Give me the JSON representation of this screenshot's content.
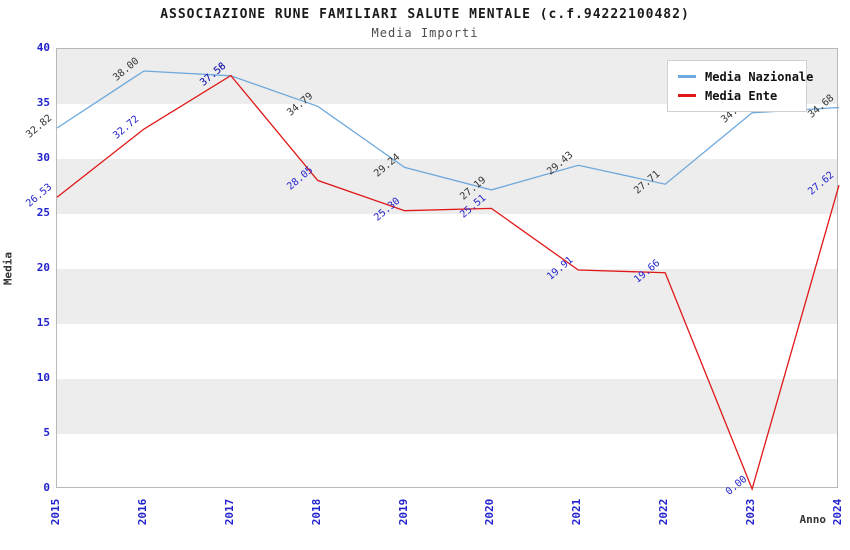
{
  "header": {
    "title": "ASSOCIAZIONE RUNE FAMILIARI SALUTE MENTALE (c.f.94222100482)",
    "subtitle": "Media Importi"
  },
  "axes": {
    "y_label": "Media",
    "x_label": "Anno",
    "y_ticks": [
      "0",
      "5",
      "10",
      "15",
      "20",
      "25",
      "30",
      "35",
      "40"
    ],
    "tick_color": "#2222cc"
  },
  "legend": {
    "position": "top-right",
    "entries": [
      {
        "label": "Media Nazionale",
        "color": "#6fa8dc"
      },
      {
        "label": "Media Ente",
        "color": "#e01818"
      }
    ]
  },
  "colors": {
    "nazionale_line": "#6fa8dc",
    "ente_line": "#e01818",
    "nazionale_label_text": "#333333",
    "ente_label_text": "#2222cc",
    "band_gray": "#ededed",
    "axis_text_blue": "#2222cc"
  },
  "chart_data": {
    "type": "line",
    "title": "ASSOCIAZIONE RUNE FAMILIARI SALUTE MENTALE (c.f.94222100482)",
    "subtitle": "Media Importi",
    "xlabel": "Anno",
    "ylabel": "Media",
    "ylim": [
      0,
      40
    ],
    "grid": "horizontal-bands-every-5",
    "legend_position": "top-right",
    "x": [
      "2015",
      "2016",
      "2017",
      "2018",
      "2019",
      "2020",
      "2021",
      "2022",
      "2023",
      "2024"
    ],
    "series": [
      {
        "name": "Media Nazionale",
        "color": "#6fa8dc",
        "label_color": "#333333",
        "values": [
          32.82,
          38.0,
          37.56,
          34.79,
          29.24,
          27.19,
          29.43,
          27.71,
          34.2,
          34.68
        ],
        "note_2023": "label hidden behind legend box"
      },
      {
        "name": "Media Ente",
        "color": "#e01818",
        "label_color": "#2222cc",
        "values": [
          26.53,
          32.72,
          37.58,
          28.05,
          25.3,
          25.51,
          19.91,
          19.66,
          0.0,
          27.62
        ]
      }
    ]
  }
}
